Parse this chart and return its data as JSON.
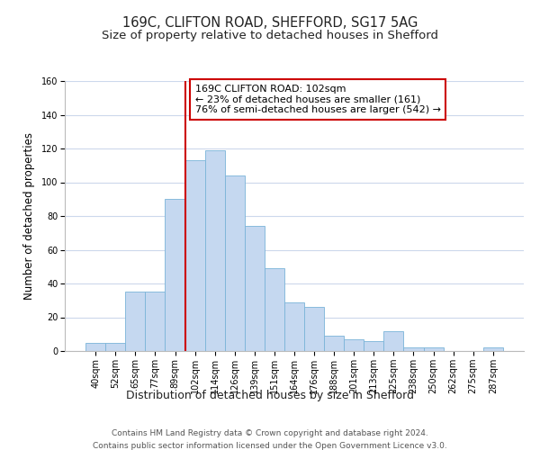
{
  "title": "169C, CLIFTON ROAD, SHEFFORD, SG17 5AG",
  "subtitle": "Size of property relative to detached houses in Shefford",
  "xlabel": "Distribution of detached houses by size in Shefford",
  "ylabel": "Number of detached properties",
  "bin_labels": [
    "40sqm",
    "52sqm",
    "65sqm",
    "77sqm",
    "89sqm",
    "102sqm",
    "114sqm",
    "126sqm",
    "139sqm",
    "151sqm",
    "164sqm",
    "176sqm",
    "188sqm",
    "201sqm",
    "213sqm",
    "225sqm",
    "238sqm",
    "250sqm",
    "262sqm",
    "275sqm",
    "287sqm"
  ],
  "bar_values": [
    5,
    5,
    35,
    35,
    90,
    113,
    119,
    104,
    74,
    49,
    29,
    26,
    9,
    7,
    6,
    12,
    2,
    2,
    0,
    0,
    2
  ],
  "bar_color": "#c5d8f0",
  "bar_edge_color": "#7ab4d8",
  "vline_color": "#cc0000",
  "annotation_text": "169C CLIFTON ROAD: 102sqm\n← 23% of detached houses are smaller (161)\n76% of semi-detached houses are larger (542) →",
  "annotation_box_color": "#ffffff",
  "annotation_box_edge": "#cc0000",
  "ylim": [
    0,
    160
  ],
  "yticks": [
    0,
    20,
    40,
    60,
    80,
    100,
    120,
    140,
    160
  ],
  "footer_line1": "Contains HM Land Registry data © Crown copyright and database right 2024.",
  "footer_line2": "Contains public sector information licensed under the Open Government Licence v3.0.",
  "bg_color": "#ffffff",
  "grid_color": "#ccd8ec",
  "title_fontsize": 10.5,
  "subtitle_fontsize": 9.5,
  "xlabel_fontsize": 9,
  "ylabel_fontsize": 8.5,
  "tick_fontsize": 7,
  "annotation_fontsize": 8,
  "footer_fontsize": 6.5
}
